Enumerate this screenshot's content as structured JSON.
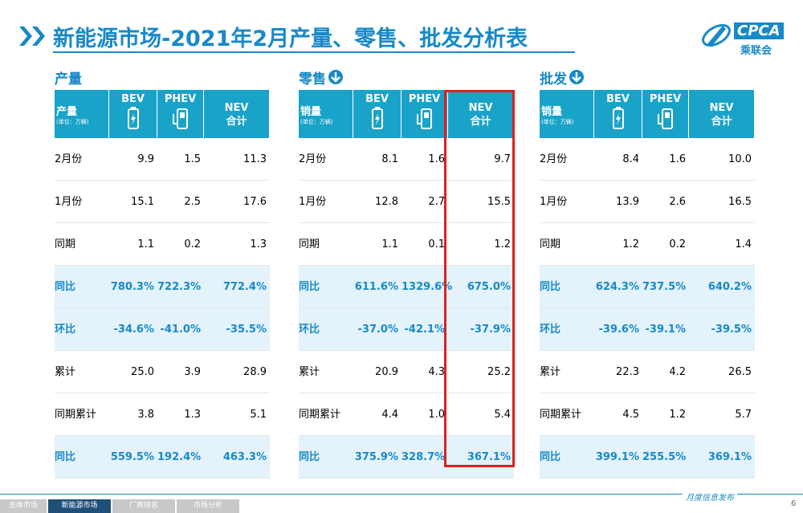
{
  "header": {
    "title": "新能源市场-2021年2月产量、零售、批发分析表",
    "logo": "CPCA",
    "logo_sub": "乘联会"
  },
  "tables": [
    {
      "title": "产量",
      "head_label": "产量",
      "head_unit": "(单位：万辆)",
      "columns": [
        [
          "BEV"
        ],
        [
          "PHEV"
        ],
        [
          "NEV",
          "合计"
        ]
      ],
      "rows": [
        {
          "cells": [
            "2月份",
            "9.9",
            "1.5",
            "11.3"
          ],
          "highlight": false
        },
        {
          "cells": [
            "1月份",
            "15.1",
            "2.5",
            "17.6"
          ],
          "highlight": false
        },
        {
          "cells": [
            "同期",
            "1.1",
            "0.2",
            "1.3"
          ],
          "highlight": false
        },
        {
          "cells": [
            "同比",
            "780.3%",
            "722.3%",
            "772.4%"
          ],
          "highlight": true
        },
        {
          "cells": [
            "环比",
            "-34.6%",
            "-41.0%",
            "-35.5%"
          ],
          "highlight": true
        },
        {
          "cells": [
            "累计",
            "25.0",
            "3.9",
            "28.9"
          ],
          "highlight": false
        },
        {
          "cells": [
            "同期累计",
            "3.8",
            "1.3",
            "5.1"
          ],
          "highlight": false
        },
        {
          "cells": [
            "同比",
            "559.5%",
            "192.4%",
            "463.3%"
          ],
          "highlight": true
        }
      ]
    },
    {
      "title": "零售",
      "head_label": "销量",
      "head_unit": "(单位：万辆)",
      "columns": [
        [
          "BEV"
        ],
        [
          "PHEV"
        ],
        [
          "NEV",
          "合计"
        ]
      ],
      "rows": [
        {
          "cells": [
            "2月份",
            "8.1",
            "1.6",
            "9.7"
          ],
          "highlight": false
        },
        {
          "cells": [
            "1月份",
            "12.8",
            "2.7",
            "15.5"
          ],
          "highlight": false
        },
        {
          "cells": [
            "同期",
            "1.1",
            "0.1",
            "1.2"
          ],
          "highlight": false
        },
        {
          "cells": [
            "同比",
            "611.6%",
            "1329.6%",
            "675.0%"
          ],
          "highlight": true
        },
        {
          "cells": [
            "环比",
            "-37.0%",
            "-42.1%",
            "-37.9%"
          ],
          "highlight": true
        },
        {
          "cells": [
            "累计",
            "20.9",
            "4.3",
            "25.2"
          ],
          "highlight": false
        },
        {
          "cells": [
            "同期累计",
            "4.4",
            "1.0",
            "5.4"
          ],
          "highlight": false
        },
        {
          "cells": [
            "同比",
            "375.9%",
            "328.7%",
            "367.1%"
          ],
          "highlight": true
        }
      ]
    },
    {
      "title": "批发",
      "head_label": "销量",
      "head_unit": "(单位：万辆)",
      "columns": [
        [
          "BEV"
        ],
        [
          "PHEV"
        ],
        [
          "NEV",
          "合计"
        ]
      ],
      "rows": [
        {
          "cells": [
            "2月份",
            "8.4",
            "1.6",
            "10.0"
          ],
          "highlight": false
        },
        {
          "cells": [
            "1月份",
            "13.9",
            "2.6",
            "16.5"
          ],
          "highlight": false
        },
        {
          "cells": [
            "同期",
            "1.2",
            "0.2",
            "1.4"
          ],
          "highlight": false
        },
        {
          "cells": [
            "同比",
            "624.3%",
            "737.5%",
            "640.2%"
          ],
          "highlight": true
        },
        {
          "cells": [
            "环比",
            "-39.6%",
            "-39.1%",
            "-39.5%"
          ],
          "highlight": true
        },
        {
          "cells": [
            "累计",
            "22.3",
            "4.2",
            "26.5"
          ],
          "highlight": false
        },
        {
          "cells": [
            "同期累计",
            "4.5",
            "1.2",
            "5.7"
          ],
          "highlight": false
        },
        {
          "cells": [
            "同比",
            "399.1%",
            "255.5%",
            "369.1%"
          ],
          "highlight": true
        }
      ]
    }
  ],
  "footer": {
    "tabs": [
      "总体市场",
      "新能源市场",
      "厂商排名",
      "市场分析"
    ],
    "active_tab": 1,
    "note": "月度信息发布",
    "page": "6"
  }
}
